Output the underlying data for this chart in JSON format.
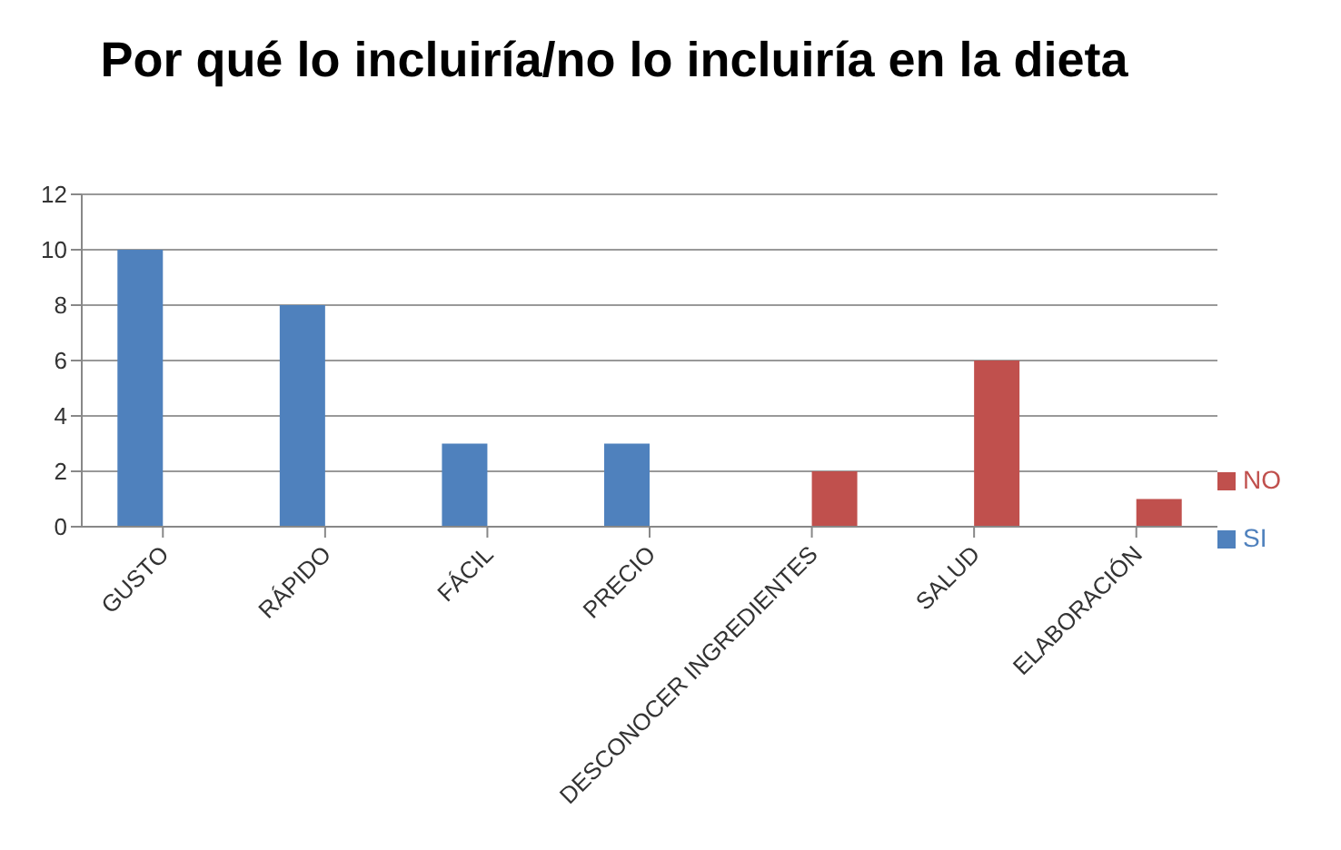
{
  "chart_data": {
    "type": "bar",
    "title": "Por qué lo incluiría/no lo incluiría en la dieta",
    "categories": [
      "GUSTO",
      "RÁPIDO",
      "FÁCIL",
      "PRECIO",
      "DESCONOCER INGREDIENTES",
      "SALUD",
      "ELABORACIÓN"
    ],
    "series": [
      {
        "name": "SI",
        "color": "#4f81bd",
        "values": [
          10,
          8,
          3,
          3,
          null,
          null,
          null
        ]
      },
      {
        "name": "NO",
        "color": "#c0504d",
        "values": [
          null,
          null,
          null,
          null,
          2,
          6,
          1
        ]
      }
    ],
    "ylim": [
      0,
      12
    ],
    "yticks": [
      0,
      2,
      4,
      6,
      8,
      10,
      12
    ],
    "grid": "y",
    "legend": "right"
  }
}
